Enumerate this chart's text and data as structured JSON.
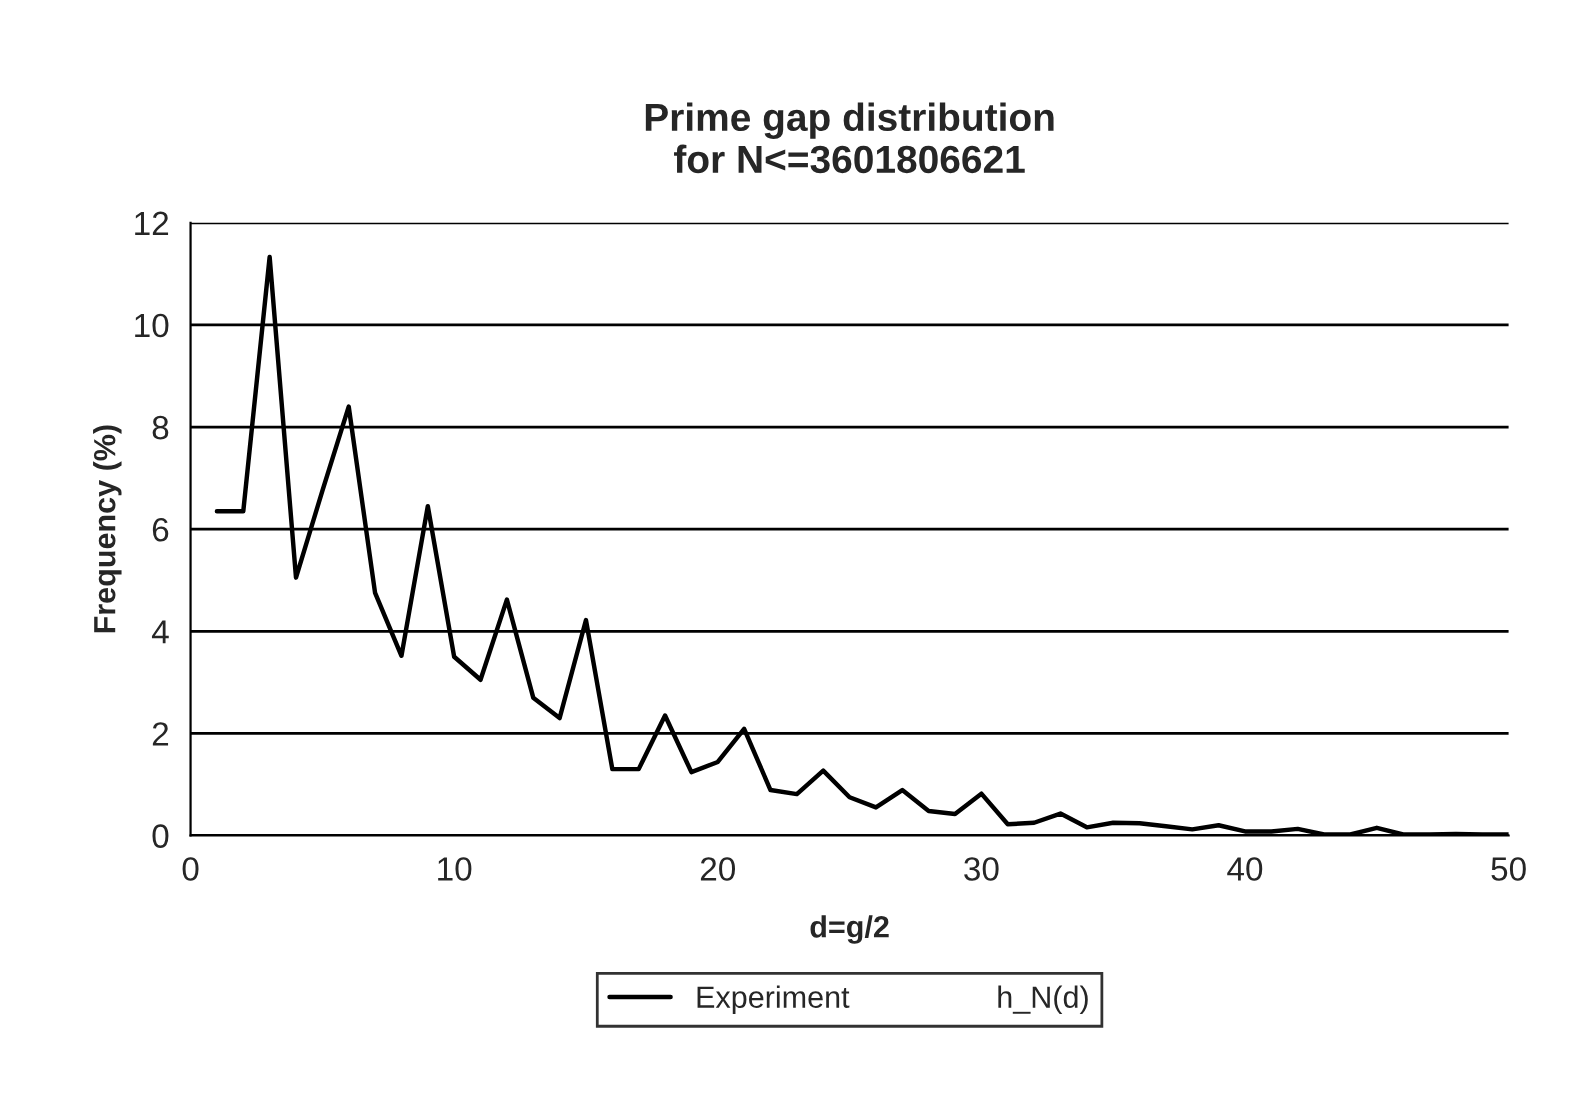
{
  "chart_data": {
    "type": "line",
    "title": "Prime gap distribution\nfor N<=3601806621",
    "xlabel": "d=g/2",
    "ylabel": "Frequency (%)",
    "x": [
      1,
      2,
      3,
      4,
      5,
      6,
      7,
      8,
      9,
      10,
      11,
      12,
      13,
      14,
      15,
      16,
      17,
      18,
      19,
      20,
      21,
      22,
      23,
      24,
      25,
      26,
      27,
      28,
      29,
      30,
      31,
      32,
      33,
      34,
      35,
      36,
      37,
      38,
      39,
      40,
      41,
      42,
      43,
      44,
      45,
      46,
      47,
      48,
      49,
      50
    ],
    "series": [
      {
        "name": "Experiment",
        "color": "#000000",
        "values": [
          6.35,
          6.35,
          11.33,
          5.05,
          6.75,
          8.4,
          4.75,
          3.52,
          6.45,
          3.5,
          3.05,
          4.62,
          2.7,
          2.3,
          4.22,
          1.3,
          1.3,
          2.35,
          1.24,
          1.44,
          2.09,
          0.89,
          0.81,
          1.27,
          0.75,
          0.55,
          0.89,
          0.48,
          0.42,
          0.82,
          0.22,
          0.25,
          0.43,
          0.16,
          0.25,
          0.24,
          0.18,
          0.12,
          0.2,
          0.08,
          0.08,
          0.13,
          0.02,
          0.02,
          0.15,
          0.02,
          0.02,
          0.03,
          0.02,
          0.02
        ]
      },
      {
        "name": "h_N(d)",
        "values": [
          null,
          null,
          null,
          null,
          null,
          null,
          null,
          null,
          null,
          null,
          null,
          null,
          null,
          null,
          null,
          null,
          null,
          null,
          null,
          null,
          null,
          null,
          null,
          null,
          null,
          null,
          null,
          null,
          null,
          null,
          null,
          null,
          null,
          null,
          null,
          null,
          null,
          null,
          null,
          null,
          null,
          null,
          null,
          null,
          null,
          null,
          null,
          null,
          null,
          null
        ]
      }
    ],
    "xlim": [
      0,
      50
    ],
    "xticks": [
      0,
      10,
      20,
      30,
      40,
      50
    ],
    "ylim": [
      0,
      12
    ],
    "yticks": [
      0,
      2,
      4,
      6,
      8,
      10,
      12
    ],
    "grid": "y",
    "legend": "bottom",
    "marker": "none",
    "line_style": "solid"
  }
}
